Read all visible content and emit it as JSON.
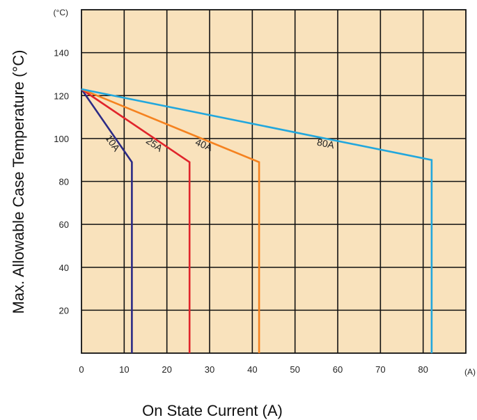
{
  "chart_data": {
    "type": "line",
    "xlabel": "On State Current (A)",
    "ylabel": "Max. Allowable Case Temperature (°C)",
    "x_unit": "(A)",
    "y_unit": "(°C)",
    "xlim": [
      0,
      90
    ],
    "ylim": [
      0,
      160
    ],
    "x_ticks": [
      0,
      10,
      20,
      30,
      40,
      50,
      60,
      70,
      80
    ],
    "y_ticks": [
      20,
      40,
      60,
      80,
      100,
      120,
      140
    ],
    "grid": true,
    "background_color": "#f9e2bc",
    "series": [
      {
        "name": "10A",
        "color": "#2b2a85",
        "x": [
          0,
          11.8,
          11.8
        ],
        "y": [
          123,
          89,
          0
        ]
      },
      {
        "name": "25A",
        "color": "#e0242b",
        "x": [
          0,
          25.3,
          25.3
        ],
        "y": [
          123,
          89,
          0
        ]
      },
      {
        "name": "40A",
        "color": "#f5821f",
        "x": [
          0,
          41.6,
          41.6
        ],
        "y": [
          123,
          89,
          0
        ]
      },
      {
        "name": "80A",
        "color": "#22a7dd",
        "x": [
          0,
          82,
          82
        ],
        "y": [
          123,
          90,
          0
        ]
      }
    ]
  }
}
